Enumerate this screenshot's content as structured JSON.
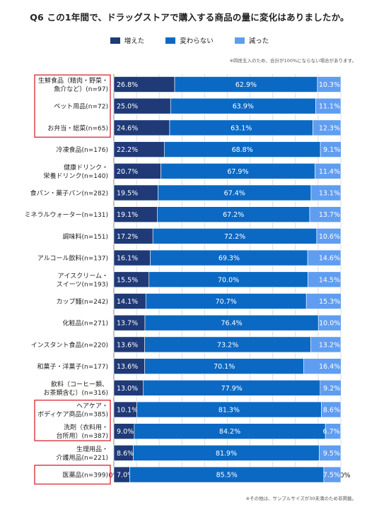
{
  "chart_data": {
    "type": "bar",
    "orientation": "horizontal",
    "stacked": true,
    "title": "Q6 この1年間で、ドラッグストアで購入する商品の量に変化はありましたか。",
    "note_top": "※四捨五入のため、合計が100%にならない場合があります。",
    "note_bottom": "※その他は、サンプルサイズが30未満のため非掲載。",
    "legend_position": "top",
    "xlim": [
      0,
      100
    ],
    "xticks": [
      "0%",
      "10%",
      "20%",
      "30%",
      "40%",
      "50%",
      "60%",
      "70%",
      "80%",
      "90%",
      "100%"
    ],
    "colors": [
      "#1f3a77",
      "#0b69c4",
      "#5f9df0"
    ],
    "categories": [
      [
        "生鮮食品（精肉・野菜・",
        "魚介など）(n=97)"
      ],
      [
        "ペット用品(n=72)"
      ],
      [
        "お弁当・総菜(n=65)"
      ],
      [
        "冷凍食品(n=176)"
      ],
      [
        "健康ドリンク・",
        "栄養ドリンク(n=140)"
      ],
      [
        "食パン・菓子パン(n=282)"
      ],
      [
        "ミネラルウォーター(n=131)"
      ],
      [
        "調味料(n=151)"
      ],
      [
        "アルコール飲料(n=137)"
      ],
      [
        "アイスクリーム・",
        "スイーツ(n=193)"
      ],
      [
        "カップ麺(n=242)"
      ],
      [
        "化粧品(n=271)"
      ],
      [
        "インスタント食品(n=220)"
      ],
      [
        "和菓子・洋菓子(n=177)"
      ],
      [
        "飲料（コーヒー類、",
        "お茶類含む）(n=316)"
      ],
      [
        "ヘアケア・",
        "ボディケア商品(n=385)"
      ],
      [
        "洗剤（衣料用・",
        "台所用）(n=387)"
      ],
      [
        "生理用品・",
        "介護用品(n=221)"
      ],
      [
        "医薬品(n=399)"
      ]
    ],
    "series": [
      {
        "name": "増えた",
        "values": [
          26.8,
          25.0,
          24.6,
          22.2,
          20.7,
          19.5,
          19.1,
          17.2,
          16.1,
          15.5,
          14.1,
          13.7,
          13.6,
          13.6,
          13.0,
          10.1,
          9.0,
          8.6,
          7.0
        ]
      },
      {
        "name": "変わらない",
        "values": [
          62.9,
          63.9,
          63.1,
          68.8,
          67.9,
          67.4,
          67.2,
          72.2,
          69.3,
          70.0,
          70.7,
          76.4,
          73.2,
          70.1,
          77.9,
          81.3,
          84.2,
          81.9,
          85.5
        ]
      },
      {
        "name": "減った",
        "values": [
          10.3,
          11.1,
          12.3,
          9.1,
          11.4,
          13.1,
          13.7,
          10.6,
          14.6,
          14.5,
          15.3,
          10.0,
          13.2,
          16.4,
          9.2,
          8.6,
          6.7,
          9.5,
          7.5
        ]
      }
    ],
    "highlight_groups": [
      [
        0,
        2
      ],
      [
        15,
        16
      ],
      [
        18,
        18
      ]
    ],
    "highlight_color": "#d9363e"
  }
}
